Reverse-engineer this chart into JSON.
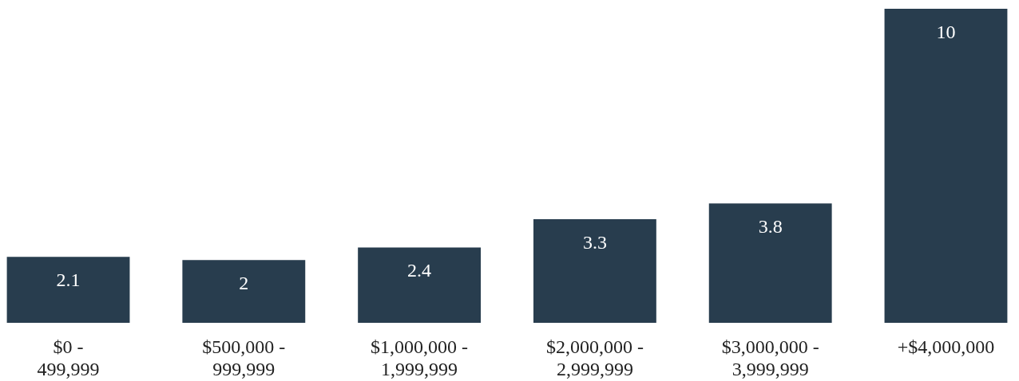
{
  "chart_data": {
    "type": "bar",
    "categories": [
      "$0 -\n499,999",
      "$500,000 -\n999,999",
      "$1,000,000 -\n1,999,999",
      "$2,000,000 -\n2,999,999",
      "$3,000,000 -\n3,999,999",
      "+$4,000,000"
    ],
    "values": [
      2.1,
      2,
      2.4,
      3.3,
      3.8,
      10
    ],
    "color": "#283d4e",
    "data_labels": true
  }
}
